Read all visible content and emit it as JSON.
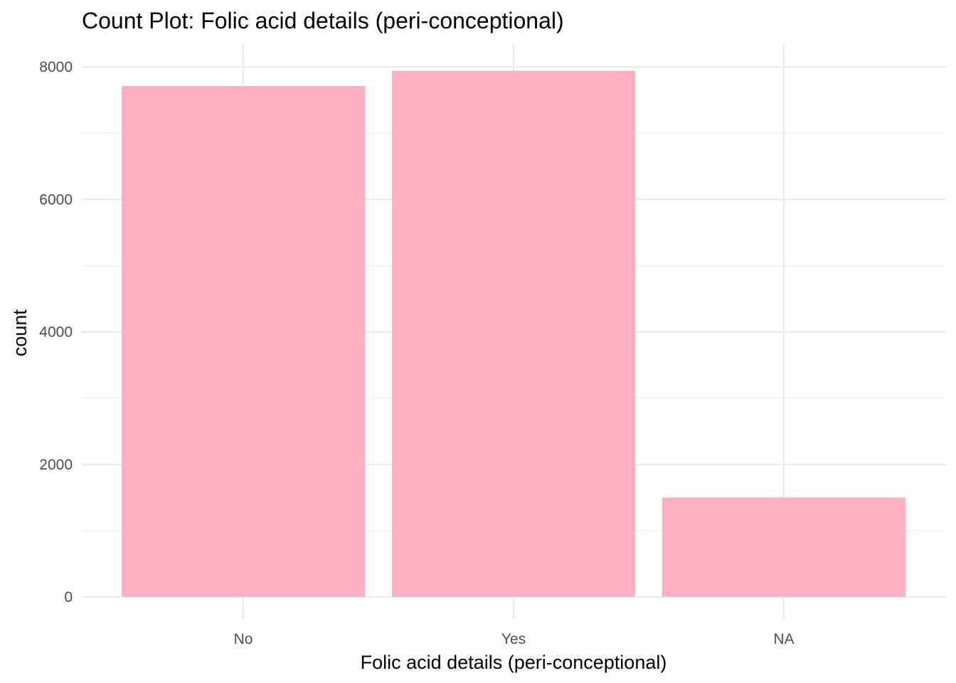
{
  "chart_data": {
    "type": "bar",
    "title": "Count Plot: Folic acid details (peri-conceptional)",
    "xlabel": "Folic acid details (peri-conceptional)",
    "ylabel": "count",
    "categories": [
      "No",
      "Yes",
      "NA"
    ],
    "values": [
      7710,
      7940,
      1500
    ],
    "ylim": [
      -850,
      8350
    ],
    "yticks": [
      0,
      2000,
      4000,
      6000,
      8000
    ],
    "yminor": [
      1000,
      3000,
      5000,
      7000
    ],
    "grid": true,
    "legend": "none",
    "bar_color": "#fcb0c2",
    "background": "#ffffff",
    "grid_color": "#ebebeb"
  }
}
